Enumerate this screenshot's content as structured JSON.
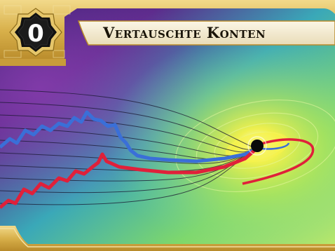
{
  "card": {
    "title": "Vertauschte Konten",
    "cost": "0",
    "art_subject": "stock-chart-lines-swirling-into-black-hole-icon",
    "colors": {
      "frame_gold": "#d8b04a",
      "title_banner": "#f4ecd6",
      "cost_badge": "#0d0d0d",
      "line_blue": "#3a6fd8",
      "line_red": "#e0203a",
      "glow_yellow": "#f6f24a",
      "space_purple": "#5a2a8a",
      "space_teal": "#2fc7c3"
    }
  }
}
